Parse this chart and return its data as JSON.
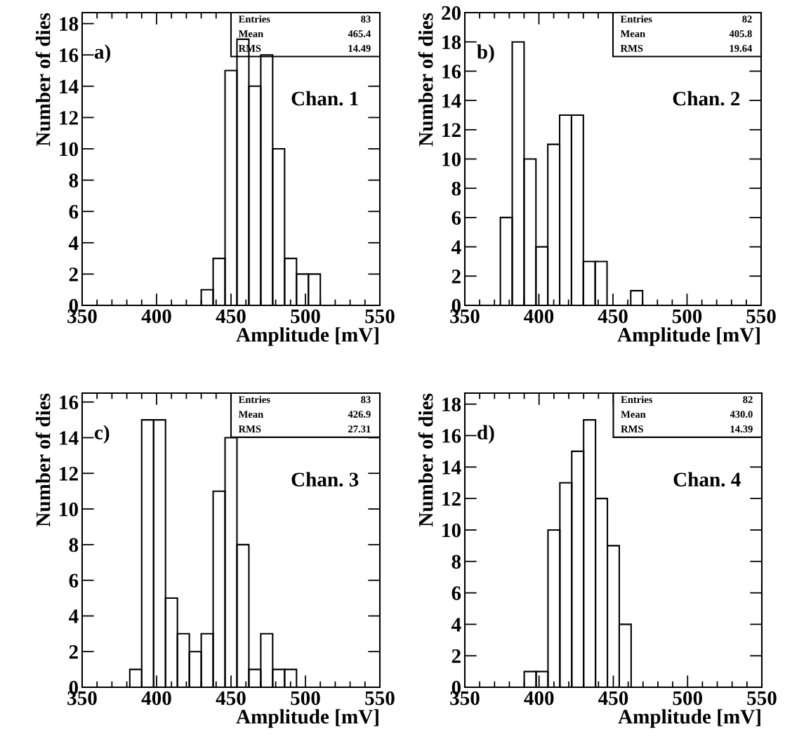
{
  "chart_data": [
    {
      "type": "histogram",
      "xlabel": "Amplitude [mV]",
      "ylabel": "Number of dies",
      "color": "#000000",
      "bins": [
        430,
        438,
        446,
        454,
        462,
        470,
        478,
        486,
        494,
        502,
        510
      ],
      "values": [
        1,
        3,
        15,
        17,
        14,
        16,
        10,
        3,
        2,
        2
      ],
      "xlim": [
        350,
        550
      ],
      "ylim": [
        0,
        18.7
      ],
      "xticks": [
        350,
        400,
        450,
        500,
        550
      ],
      "yticks": [
        0,
        2,
        4,
        6,
        8,
        10,
        12,
        14,
        16,
        18
      ],
      "annotations": [
        "a)",
        "Chan. 1",
        "Entries",
        "83",
        "Mean",
        "465.4",
        "RMS",
        "14.49"
      ]
    },
    {
      "type": "histogram",
      "xlabel": "Amplitude [mV]",
      "ylabel": "Number of dies",
      "color": "#000000",
      "bins": [
        374,
        382,
        390,
        398,
        406,
        414,
        422,
        430,
        438,
        446,
        454,
        462,
        470
      ],
      "values": [
        6,
        18,
        10,
        4,
        11,
        13,
        13,
        3,
        3,
        0,
        0,
        1
      ],
      "xlim": [
        350,
        550
      ],
      "ylim": [
        0,
        20
      ],
      "xticks": [
        350,
        400,
        450,
        500,
        550
      ],
      "yticks": [
        0,
        2,
        4,
        6,
        8,
        10,
        12,
        14,
        16,
        18,
        20
      ],
      "annotations": [
        "b)",
        "Chan. 2",
        "Entries",
        "82",
        "Mean",
        "405.8",
        "RMS",
        "19.64"
      ]
    },
    {
      "type": "histogram",
      "xlabel": "Amplitude [mV]",
      "ylabel": "Number of dies",
      "color": "#000000",
      "bins": [
        382,
        390,
        398,
        406,
        414,
        422,
        430,
        438,
        446,
        454,
        462,
        470,
        478,
        486,
        494
      ],
      "values": [
        1,
        15,
        15,
        5,
        3,
        2,
        3,
        11,
        14,
        8,
        1,
        3,
        1,
        1
      ],
      "xlim": [
        350,
        550
      ],
      "ylim": [
        0,
        16.5
      ],
      "xticks": [
        350,
        400,
        450,
        500,
        550
      ],
      "yticks": [
        0,
        2,
        4,
        6,
        8,
        10,
        12,
        14,
        16
      ],
      "annotations": [
        "c)",
        "Chan. 3",
        "Entries",
        "83",
        "Mean",
        "426.9",
        "RMS",
        "27.31"
      ]
    },
    {
      "type": "histogram",
      "xlabel": "Amplitude [mV]",
      "ylabel": "Number of dies",
      "color": "#000000",
      "bins": [
        390,
        398,
        406,
        414,
        422,
        430,
        438,
        446,
        454,
        462
      ],
      "values": [
        1,
        1,
        10,
        13,
        15,
        17,
        12,
        9,
        4
      ],
      "xlim": [
        350,
        550
      ],
      "ylim": [
        0,
        18.7
      ],
      "xticks": [
        350,
        400,
        450,
        500,
        550
      ],
      "yticks": [
        0,
        2,
        4,
        6,
        8,
        10,
        12,
        14,
        16,
        18
      ],
      "annotations": [
        "d)",
        "Chan. 4",
        "Entries",
        "82",
        "Mean",
        "430.0",
        "RMS",
        "14.39"
      ]
    }
  ]
}
